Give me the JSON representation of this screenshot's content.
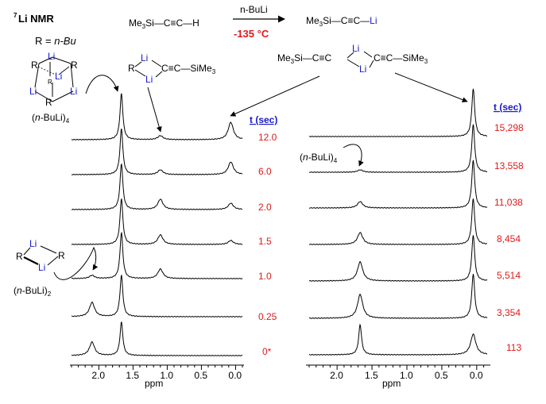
{
  "header": {
    "nmr_label_sup": "7",
    "nmr_label": "Li NMR",
    "r_def_left": "R  =  ",
    "r_def_right": "n-Bu"
  },
  "reaction": {
    "reagent": "n-BuLi",
    "temperature": "-135 °C",
    "reactant": "Me3Si—C≡C—H",
    "product": "Me3Si—C≡C—Li",
    "mixed_aggregate": "Me3Si—C≡C<Li,Li>C≡C—SiMe3",
    "dimer_acetylide": "R<Li,Li>C≡C—SiMe3"
  },
  "labels": {
    "tetramer": "(n-BuLi)4",
    "dimer": "(n-BuLi)2",
    "tetramer_right": "(n-BuLi)4",
    "li": "Li",
    "r": "R"
  },
  "left_panel": {
    "t_header": "t (sec)",
    "times": [
      "12.0",
      "6.0",
      "2.0",
      "1.5",
      "1.0",
      "0.25",
      "0*"
    ],
    "axis_ticks": [
      "2.0",
      "1.5",
      "1.0",
      "0.5",
      "0.0"
    ],
    "xlabel": "ppm"
  },
  "right_panel": {
    "t_header": "t (sec)",
    "times": [
      "15,298",
      "13,558",
      "11,038",
      "8,454",
      "5,514",
      "3,354",
      "113"
    ],
    "axis_ticks": [
      "2.0",
      "1.5",
      "1.0",
      "0.5",
      "0.0"
    ],
    "xlabel": "ppm"
  },
  "spectra_left": [
    {
      "t": "12.0",
      "peaks": [
        {
          "ppm": 1.67,
          "h": 58
        },
        {
          "ppm": 1.1,
          "h": 5
        },
        {
          "ppm": 0.07,
          "h": 22
        }
      ]
    },
    {
      "t": "6.0",
      "peaks": [
        {
          "ppm": 1.67,
          "h": 58
        },
        {
          "ppm": 1.1,
          "h": 6
        },
        {
          "ppm": 0.07,
          "h": 16
        }
      ]
    },
    {
      "t": "2.0",
      "peaks": [
        {
          "ppm": 1.67,
          "h": 58
        },
        {
          "ppm": 1.1,
          "h": 13
        },
        {
          "ppm": 0.07,
          "h": 8
        }
      ]
    },
    {
      "t": "1.5",
      "peaks": [
        {
          "ppm": 1.67,
          "h": 58
        },
        {
          "ppm": 1.1,
          "h": 12
        },
        {
          "ppm": 0.07,
          "h": 5
        }
      ]
    },
    {
      "t": "1.0",
      "peaks": [
        {
          "ppm": 1.67,
          "h": 58
        },
        {
          "ppm": 1.1,
          "h": 12
        },
        {
          "ppm": 2.1,
          "h": 4
        }
      ]
    },
    {
      "t": "0.25",
      "peaks": [
        {
          "ppm": 1.67,
          "h": 52
        },
        {
          "ppm": 2.1,
          "h": 18
        }
      ]
    },
    {
      "t": "0*",
      "peaks": [
        {
          "ppm": 1.67,
          "h": 42
        },
        {
          "ppm": 2.1,
          "h": 17
        }
      ]
    }
  ],
  "spectra_right": [
    {
      "t": "15,298",
      "peaks": [
        {
          "ppm": 0.05,
          "h": 60
        }
      ]
    },
    {
      "t": "13,558",
      "peaks": [
        {
          "ppm": 0.05,
          "h": 60
        },
        {
          "ppm": 1.67,
          "h": 3
        }
      ]
    },
    {
      "t": "11,038",
      "peaks": [
        {
          "ppm": 0.05,
          "h": 60
        },
        {
          "ppm": 1.67,
          "h": 8
        }
      ]
    },
    {
      "t": "8,454",
      "peaks": [
        {
          "ppm": 0.05,
          "h": 58
        },
        {
          "ppm": 1.67,
          "h": 15
        }
      ]
    },
    {
      "t": "5,514",
      "peaks": [
        {
          "ppm": 0.05,
          "h": 58
        },
        {
          "ppm": 1.67,
          "h": 24
        }
      ]
    },
    {
      "t": "3,354",
      "peaks": [
        {
          "ppm": 0.05,
          "h": 56
        },
        {
          "ppm": 1.67,
          "h": 30
        }
      ]
    },
    {
      "t": "113",
      "peaks": [
        {
          "ppm": 0.05,
          "h": 26
        },
        {
          "ppm": 1.67,
          "h": 38
        }
      ]
    }
  ]
}
